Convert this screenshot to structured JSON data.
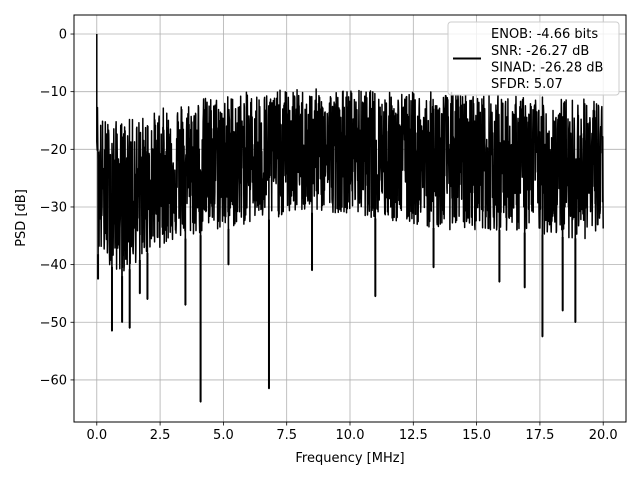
{
  "chart_data": {
    "type": "line",
    "title": "",
    "xlabel": "Frequency [MHz]",
    "ylabel": "PSD [dB]",
    "xlim": [
      -0.9,
      20.9
    ],
    "ylim": [
      -67.3,
      3.3
    ],
    "x_ticks": [
      0.0,
      2.5,
      5.0,
      7.5,
      10.0,
      12.5,
      15.0,
      17.5,
      20.0
    ],
    "x_tick_labels": [
      "0.0",
      "2.5",
      "5.0",
      "7.5",
      "10.0",
      "12.5",
      "15.0",
      "17.5",
      "20.0"
    ],
    "y_ticks": [
      0,
      -10,
      -20,
      -30,
      -40,
      -50,
      -60
    ],
    "y_tick_labels": [
      "0",
      "−10",
      "−20",
      "−30",
      "−40",
      "−50",
      "−60"
    ],
    "grid": true,
    "legend_position": "top-right",
    "series": [
      {
        "name": "ENOB: -4.66 bits\nSNR: -26.27 dB\nSINAD: -26.28 dB\nSFDR: 5.07",
        "legend_lines": [
          "ENOB: -4.66 bits",
          "SNR: -26.27 dB",
          "SINAD: -26.28 dB",
          "SFDR: 5.07"
        ],
        "color": "#000000",
        "peak": {
          "x": 0.0,
          "y": 0.0
        },
        "noise_floor": {
          "x": [
            0.0,
            0.5,
            1.0,
            2.0,
            3.0,
            4.0,
            6.0,
            8.0,
            10.0,
            12.0,
            14.0,
            16.0,
            18.0,
            20.0
          ],
          "upper_y": [
            -14,
            -15,
            -15,
            -14,
            -12,
            -11,
            -10,
            -9.5,
            -9.5,
            -10,
            -10,
            -10.5,
            -11,
            -11
          ],
          "lower_y": [
            -38,
            -40,
            -42,
            -38,
            -36,
            -35,
            -33,
            -31,
            -31,
            -33,
            -34,
            -34,
            -35,
            -36
          ]
        },
        "deep_nulls": [
          {
            "x": 0.05,
            "y": -42.5
          },
          {
            "x": 0.6,
            "y": -51.5
          },
          {
            "x": 1.0,
            "y": -50.0
          },
          {
            "x": 1.3,
            "y": -51.0
          },
          {
            "x": 1.7,
            "y": -45.0
          },
          {
            "x": 2.0,
            "y": -46.0
          },
          {
            "x": 3.5,
            "y": -47.0
          },
          {
            "x": 4.1,
            "y": -63.8
          },
          {
            "x": 5.2,
            "y": -40.0
          },
          {
            "x": 6.8,
            "y": -61.5
          },
          {
            "x": 8.5,
            "y": -41.0
          },
          {
            "x": 11.0,
            "y": -45.5
          },
          {
            "x": 13.3,
            "y": -40.5
          },
          {
            "x": 15.9,
            "y": -43.0
          },
          {
            "x": 16.9,
            "y": -44.0
          },
          {
            "x": 17.6,
            "y": -52.5
          },
          {
            "x": 18.4,
            "y": -48.0
          },
          {
            "x": 18.9,
            "y": -50.0
          }
        ]
      }
    ]
  }
}
